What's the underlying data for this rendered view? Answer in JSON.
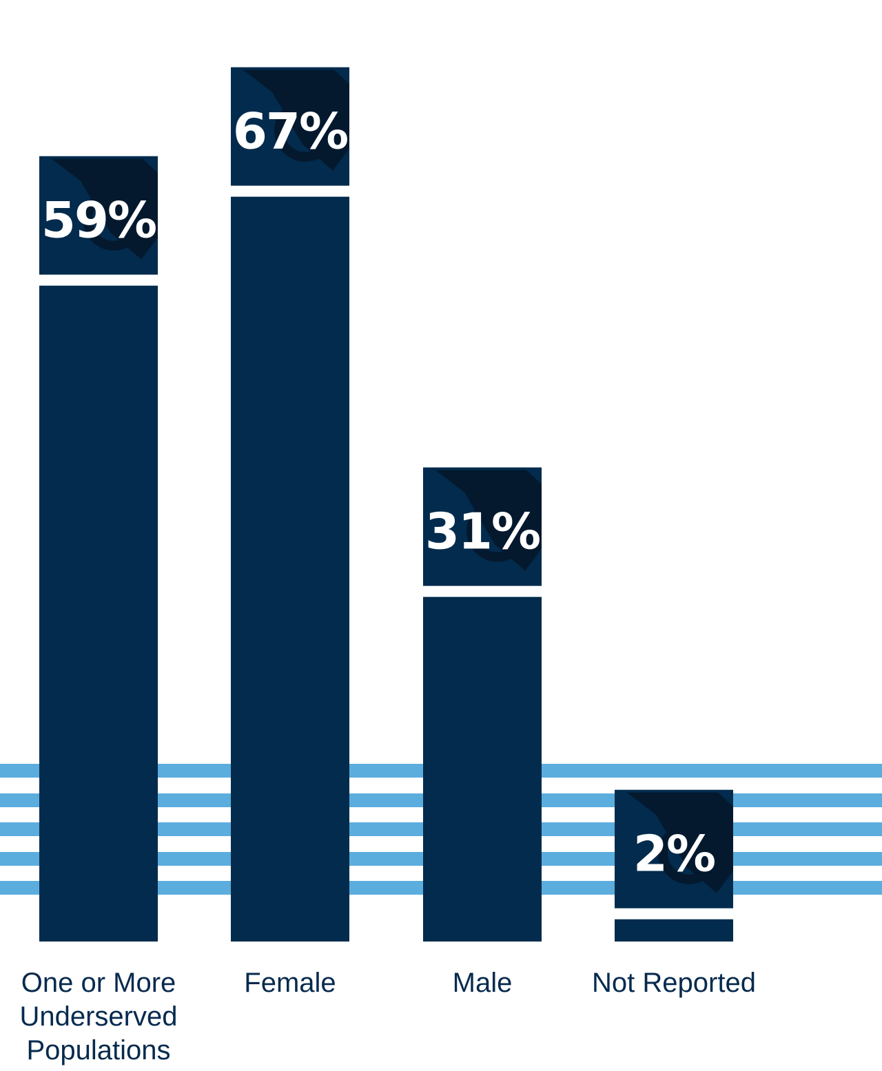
{
  "chart_data": {
    "type": "bar",
    "categories": [
      [
        "One or More",
        "Underserved",
        "Populations"
      ],
      [
        "Female"
      ],
      [
        "Male"
      ],
      [
        "Not Reported"
      ]
    ],
    "values": [
      59,
      67,
      31,
      2
    ],
    "value_labels": [
      "59%",
      "67%",
      "31%",
      "2%"
    ],
    "ylim": [
      0,
      100
    ],
    "grid": false,
    "legend": "none"
  },
  "colors": {
    "bar": "#022b4d",
    "stripe": "#5badde",
    "label": "#062a4e",
    "watermark": "#04192e"
  },
  "icons": {
    "badge_watermark": "shield-logo-icon"
  }
}
